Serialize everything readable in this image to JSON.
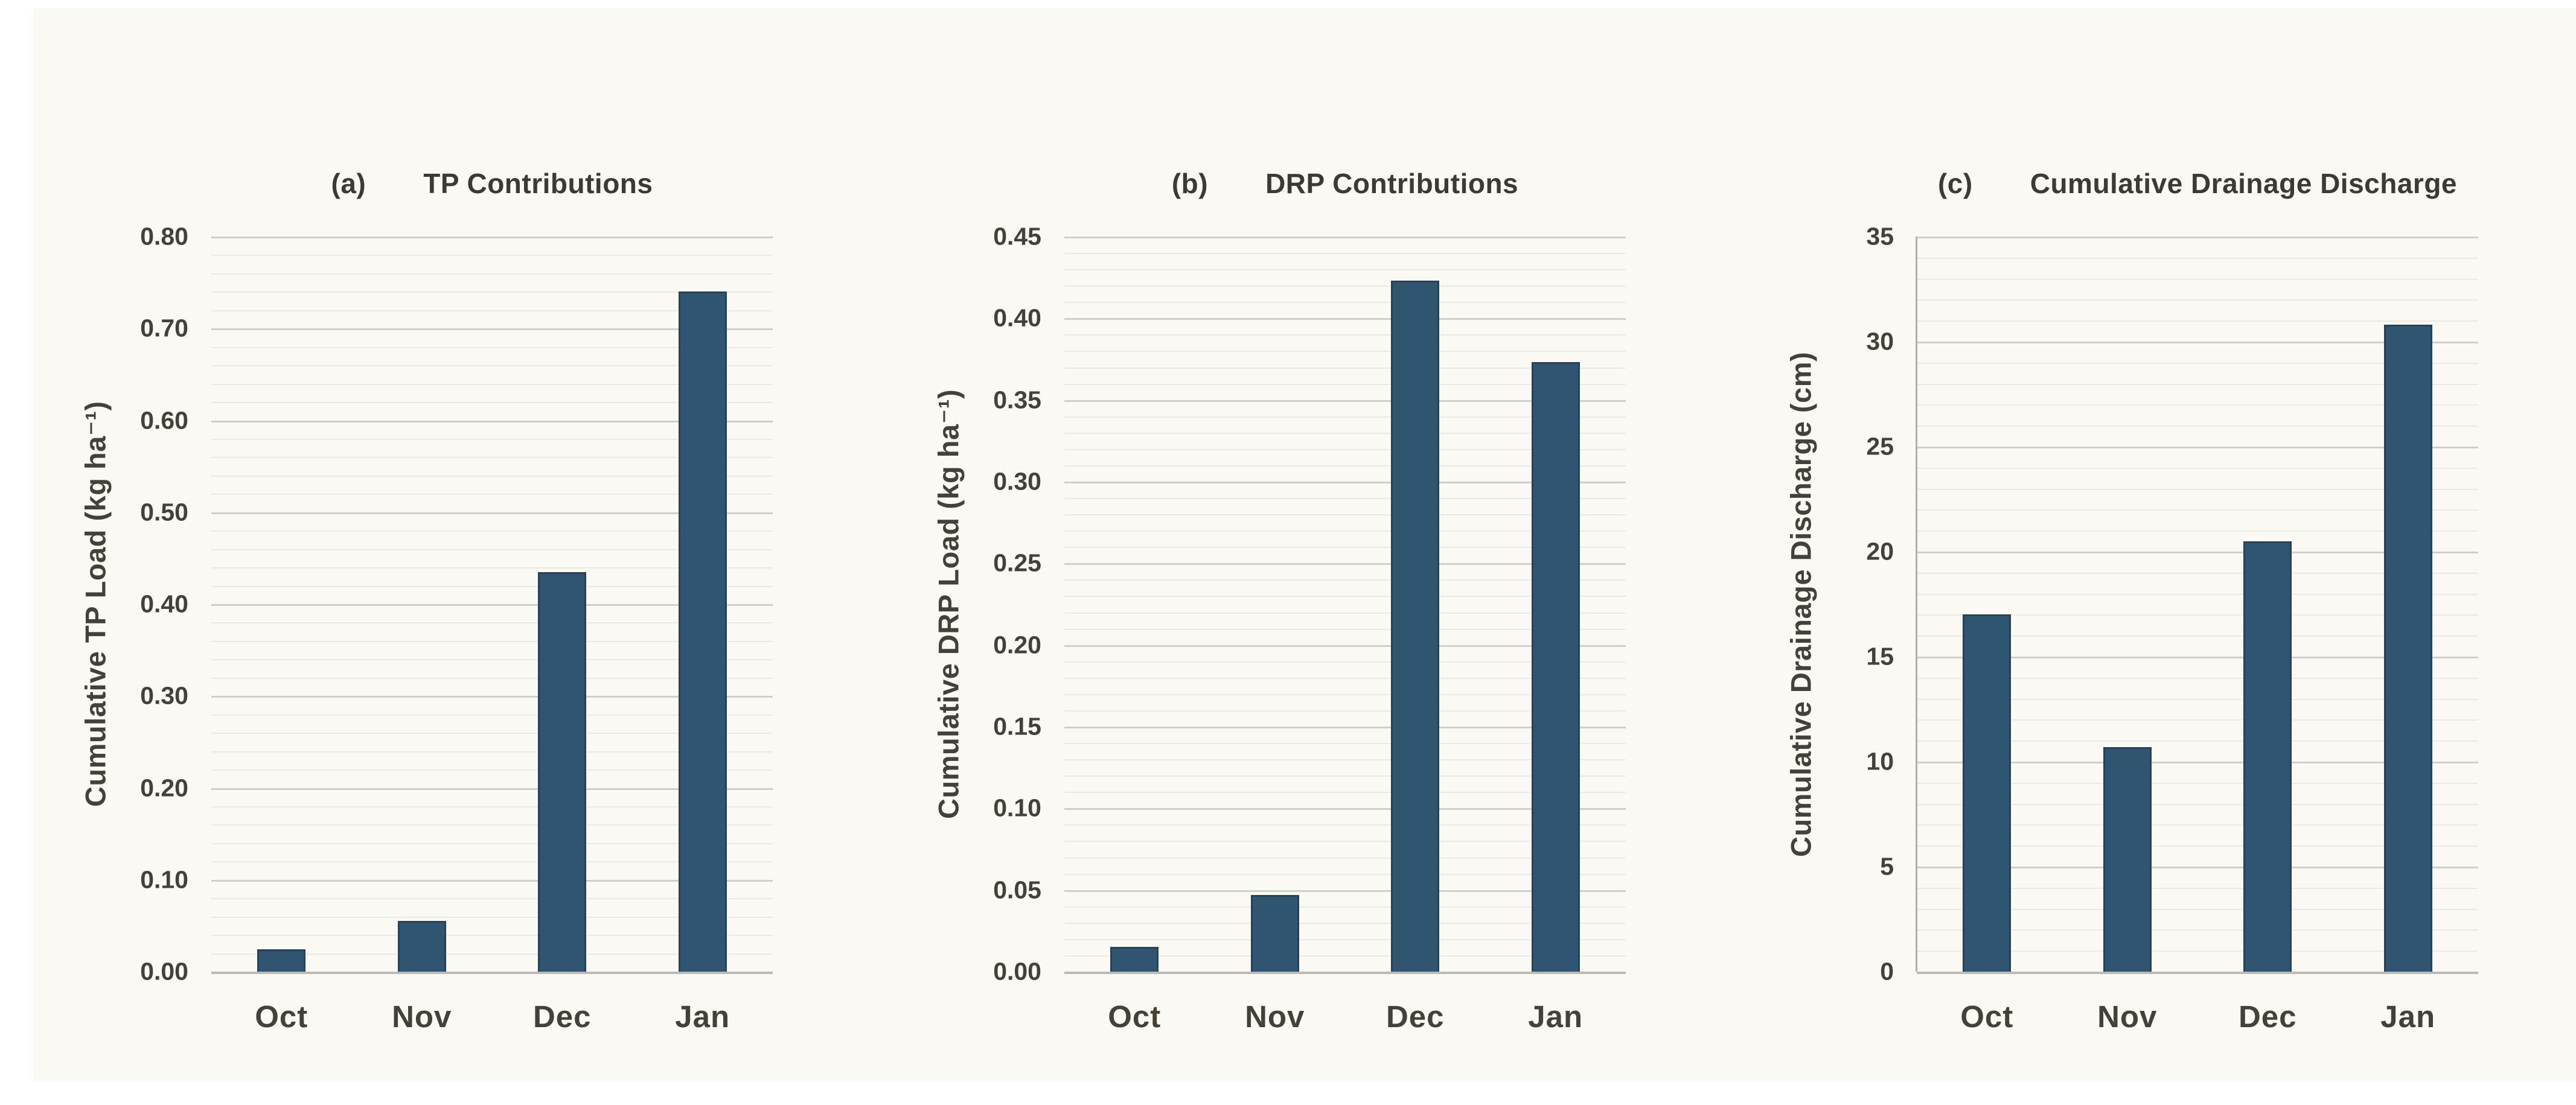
{
  "figure": {
    "background_color": "#fbf9f4",
    "bar_color": "#2f5571",
    "bar_edge_color": "#23435a",
    "text_color": "#454139",
    "months": [
      "Oct",
      "Nov",
      "Dec",
      "Jan"
    ]
  },
  "chart_data": [
    {
      "type": "bar",
      "panel_label": "(a)",
      "title": "TP Contributions",
      "ylabel": "Cumulative TP Load (kg ha⁻¹)",
      "xlabel": "",
      "categories": [
        "Oct",
        "Nov",
        "Dec",
        "Jan"
      ],
      "values": [
        0.024,
        0.055,
        0.435,
        0.74
      ],
      "ylim": [
        0,
        0.8
      ],
      "y_tick_step": 0.1,
      "y_minor_step": 0.02,
      "yticks": [
        "0.80",
        "0.70",
        "0.60",
        "0.50",
        "0.40",
        "0.30",
        "0.20",
        "0.10",
        "0.00"
      ],
      "grid": "horizontal major+minor",
      "show_y_axis_line": false,
      "legend": "none"
    },
    {
      "type": "bar",
      "panel_label": "(b)",
      "title": "DRP Contributions",
      "ylabel": "Cumulative DRP Load (kg ha⁻¹)",
      "xlabel": "",
      "categories": [
        "Oct",
        "Nov",
        "Dec",
        "Jan"
      ],
      "values": [
        0.015,
        0.047,
        0.423,
        0.373
      ],
      "ylim": [
        0,
        0.45
      ],
      "y_tick_step": 0.05,
      "y_minor_step": 0.01,
      "yticks": [
        "0.45",
        "0.40",
        "0.35",
        "0.30",
        "0.25",
        "0.20",
        "0.15",
        "0.10",
        "0.05",
        "0.00"
      ],
      "grid": "horizontal major+minor",
      "show_y_axis_line": false,
      "legend": "none"
    },
    {
      "type": "bar",
      "panel_label": "(c)",
      "title": "Cumulative Drainage Discharge",
      "ylabel": "Cumulative Drainage Discharge (cm)",
      "xlabel": "",
      "categories": [
        "Oct",
        "Nov",
        "Dec",
        "Jan"
      ],
      "values": [
        17.0,
        10.7,
        20.5,
        30.8
      ],
      "ylim": [
        0,
        35
      ],
      "y_tick_step": 5,
      "y_minor_step": 1,
      "yticks": [
        "35",
        "30",
        "25",
        "20",
        "15",
        "10",
        "5",
        "0"
      ],
      "grid": "horizontal major+minor",
      "show_y_axis_line": true,
      "legend": "none"
    }
  ]
}
